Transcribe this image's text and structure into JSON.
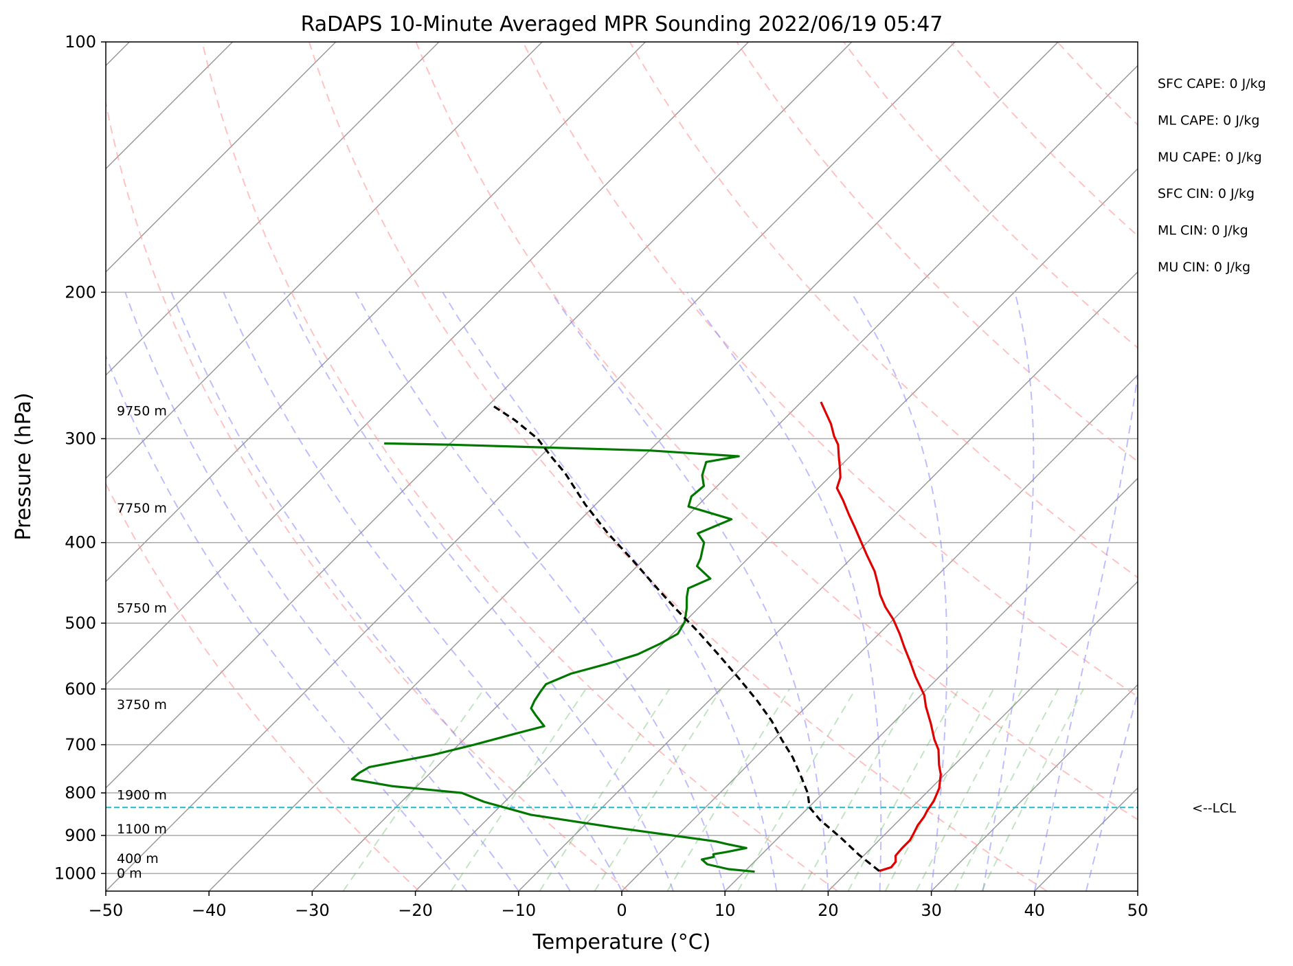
{
  "chart_data": {
    "type": "line",
    "subtype": "skew-t log-p sounding",
    "title": "RaDAPS 10-Minute Averaged MPR Sounding 2022/06/19 05:47",
    "xlabel": "Temperature (°C)",
    "ylabel": "Pressure (hPa)",
    "xlim": [
      -50,
      50
    ],
    "ylim": [
      1050,
      100
    ],
    "y_scale": "log",
    "grid": true,
    "x_ticks": [
      "−50",
      "−40",
      "−30",
      "−20",
      "−10",
      "0",
      "10",
      "20",
      "30",
      "40",
      "50"
    ],
    "y_ticks": [
      "100",
      "200",
      "300",
      "400",
      "500",
      "600",
      "700",
      "800",
      "900",
      "1000"
    ],
    "height_labels": [
      {
        "text": "9750 m",
        "p": 278
      },
      {
        "text": "7750 m",
        "p": 364
      },
      {
        "text": "5750 m",
        "p": 480
      },
      {
        "text": "3750 m",
        "p": 627
      },
      {
        "text": "1900 m",
        "p": 805
      },
      {
        "text": "1100 m",
        "p": 885
      },
      {
        "text": "400 m",
        "p": 960
      },
      {
        "text": "0 m",
        "p": 1000
      }
    ],
    "indices": [
      {
        "name": "SFC CAPE",
        "text": "SFC CAPE: 0 J/kg"
      },
      {
        "name": "ML CAPE",
        "text": "ML CAPE: 0 J/kg"
      },
      {
        "name": "MU CAPE",
        "text": "MU CAPE: 0 J/kg"
      },
      {
        "name": "SFC CIN",
        "text": "SFC CIN: 0 J/kg"
      },
      {
        "name": "ML CIN",
        "text": "ML CIN: 0 J/kg"
      },
      {
        "name": "MU CIN",
        "text": "MU CIN: 0 J/kg"
      }
    ],
    "lcl": {
      "label": "<--LCL",
      "p": 833
    },
    "series": [
      {
        "id": "temperature",
        "color": "#e00000",
        "points": [
          [
            23.0,
            993
          ],
          [
            23.8,
            983
          ],
          [
            23.7,
            968
          ],
          [
            23.1,
            952
          ],
          [
            23.0,
            933
          ],
          [
            23.0,
            912
          ],
          [
            22.7,
            895
          ],
          [
            22.3,
            875
          ],
          [
            22.1,
            855
          ],
          [
            21.8,
            840
          ],
          [
            21.5,
            818
          ],
          [
            20.8,
            790
          ],
          [
            19.6,
            760
          ],
          [
            18.5,
            740
          ],
          [
            17.0,
            710
          ],
          [
            15.6,
            690
          ],
          [
            13.7,
            660
          ],
          [
            11.6,
            630
          ],
          [
            10.3,
            610
          ],
          [
            7.7,
            580
          ],
          [
            5.6,
            555
          ],
          [
            3.8,
            535
          ],
          [
            2.0,
            515
          ],
          [
            0.0,
            495
          ],
          [
            -2.0,
            478
          ],
          [
            -3.7,
            462
          ],
          [
            -4.8,
            450
          ],
          [
            -6.5,
            433
          ],
          [
            -8.7,
            415
          ],
          [
            -10.8,
            398
          ],
          [
            -12.6,
            384
          ],
          [
            -14.5,
            370
          ],
          [
            -16.4,
            356
          ],
          [
            -18.2,
            344
          ],
          [
            -18.9,
            334
          ],
          [
            -19.9,
            325
          ],
          [
            -21.1,
            315
          ],
          [
            -22.3,
            305
          ],
          [
            -23.5,
            298
          ],
          [
            -25.0,
            288
          ],
          [
            -26.8,
            278
          ],
          [
            -28.1,
            271
          ]
        ]
      },
      {
        "id": "dewpoint",
        "color": "#007800",
        "points": [
          [
            11.0,
            995
          ],
          [
            8.2,
            988
          ],
          [
            5.7,
            975
          ],
          [
            4.7,
            962
          ],
          [
            5.6,
            955
          ],
          [
            5.3,
            948
          ],
          [
            6.4,
            942
          ],
          [
            7.9,
            932
          ],
          [
            5.7,
            922
          ],
          [
            4.3,
            915
          ],
          [
            -7.0,
            880
          ],
          [
            -16.2,
            850
          ],
          [
            -22.0,
            820
          ],
          [
            -25.0,
            800
          ],
          [
            -32.5,
            785
          ],
          [
            -37.0,
            770
          ],
          [
            -36.9,
            757
          ],
          [
            -36.5,
            745
          ],
          [
            -31.5,
            720
          ],
          [
            -28.5,
            700
          ],
          [
            -25.7,
            680
          ],
          [
            -23.5,
            665
          ],
          [
            -25.3,
            646
          ],
          [
            -26.5,
            633
          ],
          [
            -26.9,
            620
          ],
          [
            -27.2,
            605
          ],
          [
            -27.4,
            592
          ],
          [
            -26.0,
            575
          ],
          [
            -23.5,
            560
          ],
          [
            -21.4,
            545
          ],
          [
            -20.3,
            530
          ],
          [
            -19.5,
            515
          ],
          [
            -20.0,
            498
          ],
          [
            -21.1,
            480
          ],
          [
            -22.2,
            465
          ],
          [
            -22.9,
            454
          ],
          [
            -21.7,
            442
          ],
          [
            -24.2,
            427
          ],
          [
            -24.6,
            418
          ],
          [
            -25.8,
            400
          ],
          [
            -27.3,
            390
          ],
          [
            -25.4,
            375
          ],
          [
            -30.8,
            362
          ],
          [
            -31.5,
            352
          ],
          [
            -31.3,
            342
          ],
          [
            -32.5,
            332
          ],
          [
            -33.4,
            320
          ],
          [
            -30.8,
            315
          ],
          [
            -40.0,
            310
          ],
          [
            -60.0,
            305
          ],
          [
            -66.4,
            304
          ]
        ]
      },
      {
        "id": "parcel",
        "color": "#000000",
        "points": [
          [
            23.0,
            993
          ],
          [
            19.5,
            950
          ],
          [
            16.0,
            905
          ],
          [
            12.3,
            862
          ],
          [
            10.1,
            833
          ],
          [
            8.5,
            800
          ],
          [
            6.3,
            765
          ],
          [
            3.6,
            725
          ],
          [
            0.8,
            690
          ],
          [
            -2.0,
            655
          ],
          [
            -5.3,
            620
          ],
          [
            -9.0,
            585
          ],
          [
            -13.6,
            545
          ],
          [
            -18.0,
            510
          ],
          [
            -22.2,
            480
          ],
          [
            -26.5,
            450
          ],
          [
            -31.0,
            420
          ],
          [
            -36.0,
            390
          ],
          [
            -41.0,
            360
          ],
          [
            -46.0,
            330
          ],
          [
            -49.0,
            315
          ],
          [
            -52.0,
            300
          ],
          [
            -56.0,
            285
          ],
          [
            -59.8,
            273
          ]
        ]
      }
    ]
  }
}
